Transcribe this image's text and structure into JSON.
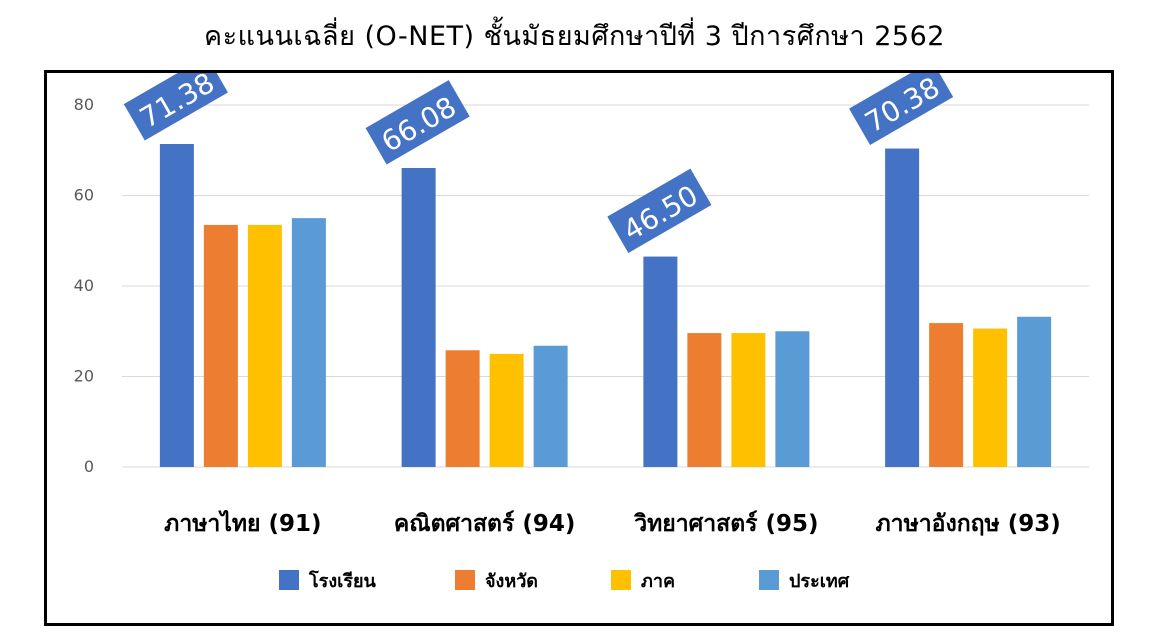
{
  "chart_data": {
    "type": "bar",
    "title": "คะแนนเฉลี่ย (O-NET) ชั้นมัธยมศึกษาปีที่ 3 ปีการศึกษา 2562",
    "categories": [
      "ภาษาไทย (91)",
      "คณิตศาสตร์ (94)",
      "วิทยาศาสตร์ (95)",
      "ภาษาอังกฤษ (93)"
    ],
    "series": [
      {
        "name": "โรงเรียน",
        "color": "#4472c4",
        "values": [
          71.38,
          66.08,
          46.5,
          70.38
        ]
      },
      {
        "name": "จังหวัด",
        "color": "#ed7d31",
        "values": [
          53.5,
          25.8,
          29.6,
          31.8
        ]
      },
      {
        "name": "ภาค",
        "color": "#ffc000",
        "values": [
          53.5,
          25.0,
          29.6,
          30.6
        ]
      },
      {
        "name": "ประเทศ",
        "color": "#5b9bd5",
        "values": [
          55.0,
          26.8,
          30.0,
          33.2
        ]
      }
    ],
    "data_labels": [
      "71.38",
      "66.08",
      "46.50",
      "70.38"
    ],
    "label_color": "#4472c4",
    "ylim": [
      0,
      80
    ],
    "yticks": [
      0,
      20,
      40,
      60,
      80
    ],
    "grid": true,
    "legend": "bottom"
  }
}
